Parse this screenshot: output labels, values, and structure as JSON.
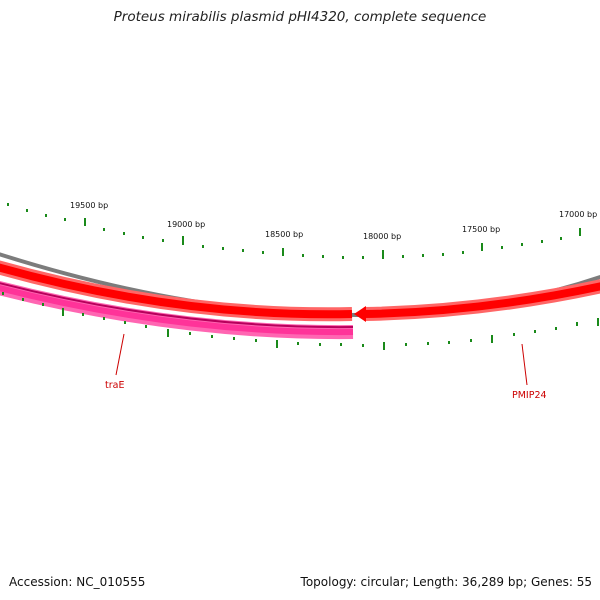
{
  "title": "Proteus mirabilis plasmid pHI4320, complete sequence",
  "footer": {
    "accession": "Accession: NC_010555",
    "summary": "Topology: circular; Length: 36,289 bp; Genes: 55"
  },
  "scale": {
    "tick_labels": [
      "19500 bp",
      "19000 bp",
      "18500 bp",
      "18000 bp",
      "17500 bp",
      "17000 bp"
    ],
    "tick_color": "#1a8a1a"
  },
  "genes": [
    {
      "label": "traE",
      "strand": "minus",
      "color": "#ff3399"
    },
    {
      "label": "PMIP24",
      "strand": "plus",
      "color": "#ff0000"
    }
  ],
  "colors": {
    "backbone": "#808080",
    "forward_track": "#ff0000",
    "reverse_track": "#ff3399",
    "gene_label": "#cc0000"
  }
}
